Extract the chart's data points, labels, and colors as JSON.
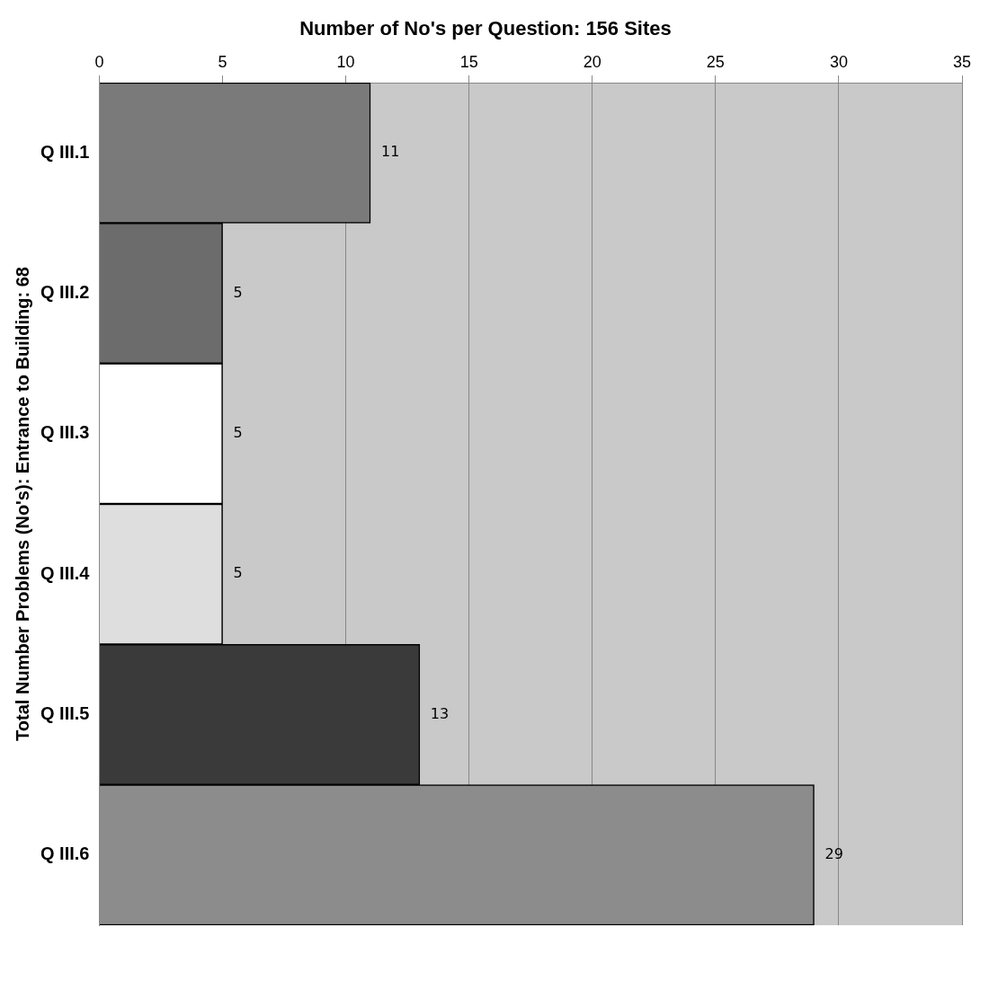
{
  "chart_data": {
    "type": "bar",
    "orientation": "horizontal",
    "title": "Number of No's per Question: 156 Sites",
    "ylabel": "Total Number Problems (No's): Entrance to Building: 68",
    "categories": [
      "Q III.1",
      "Q III.2",
      "Q III.3",
      "Q III.4",
      "Q III.5",
      "Q III.6"
    ],
    "values": [
      11,
      5,
      5,
      5,
      13,
      29
    ],
    "colors": [
      "#7a7a7a",
      "#6c6c6c",
      "#ffffff",
      "#dedede",
      "#3a3a3a",
      "#8c8c8c"
    ],
    "xlim": [
      0,
      35
    ],
    "xticks": [
      0,
      5,
      10,
      15,
      20,
      25,
      30,
      35
    ],
    "grid": "x",
    "data_labels": true,
    "legend": false
  }
}
